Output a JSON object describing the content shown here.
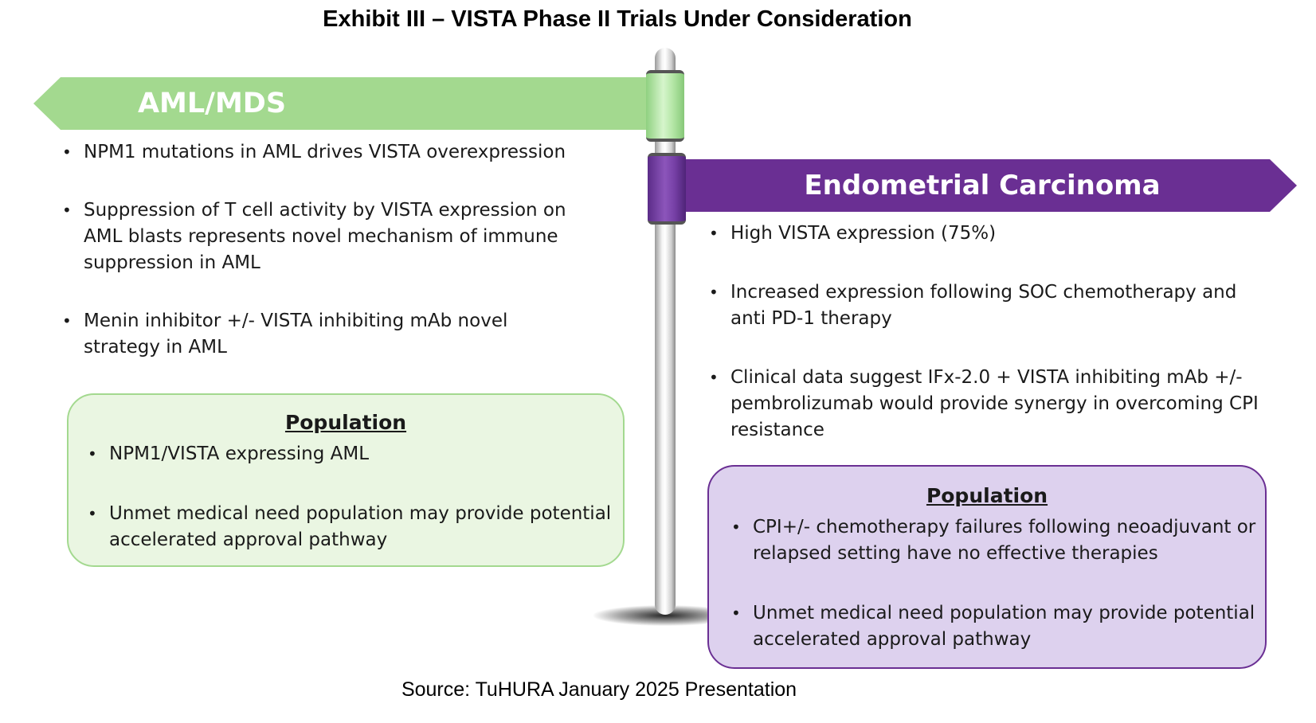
{
  "title": "Exhibit III – VISTA Phase II Trials Under Consideration",
  "aml": {
    "label": "AML/MDS",
    "color": "#a3d98f",
    "bullets": [
      "NPM1 mutations in AML drives VISTA overexpression",
      "Suppression of T cell activity by VISTA expression on AML blasts represents novel mechanism of immune suppression in AML",
      "Menin inhibitor +/- VISTA inhibiting mAb novel strategy in AML"
    ],
    "population": {
      "title": "Population",
      "bullets": [
        "NPM1/VISTA expressing AML",
        "Unmet medical need population may provide potential accelerated approval pathway"
      ]
    }
  },
  "endometrial": {
    "label": "Endometrial Carcinoma",
    "color": "#6a2f93",
    "bullets": [
      "High VISTA expression (75%)",
      "Increased expression following SOC chemotherapy and anti PD-1 therapy",
      "Clinical data suggest IFx-2.0 + VISTA inhibiting mAb +/- pembrolizumab would provide synergy in overcoming CPI resistance"
    ],
    "population": {
      "title": "Population",
      "bullets": [
        "CPI+/- chemotherapy failures following neoadjuvant or relapsed setting have no effective therapies",
        "Unmet medical need population may provide potential accelerated approval pathway"
      ]
    }
  },
  "source": "Source: TuHURA January 2025 Presentation"
}
